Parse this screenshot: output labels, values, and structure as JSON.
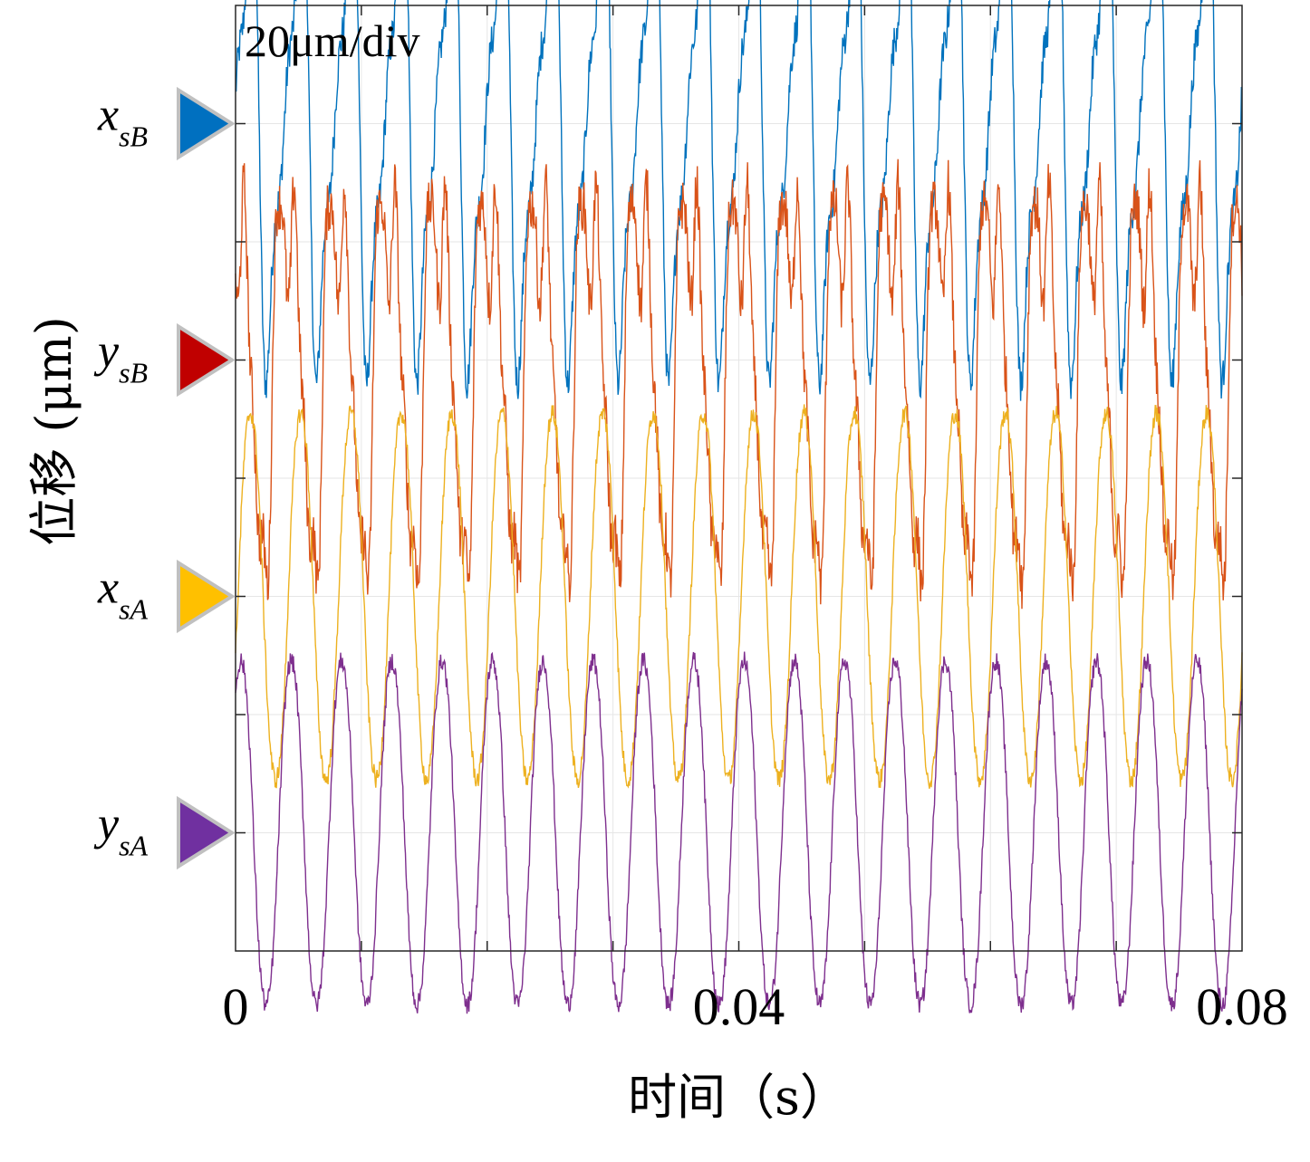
{
  "chart_data": {
    "type": "line",
    "scale_annotation": "20μm/div",
    "xlabel": "时间（s）",
    "ylabel": "位移 (μm)",
    "x_range": [
      0,
      0.08
    ],
    "x_ticks": [
      0,
      0.04,
      0.08
    ],
    "x_tick_labels": [
      "0",
      "0.04",
      "0.08"
    ],
    "y_units_per_div": 20,
    "grid": true,
    "series": [
      {
        "name": "x",
        "sub": "sB",
        "color": "#0072BD",
        "marker_color": "#0070C0",
        "frequency_hz": 250,
        "amplitude_um": 20,
        "shape": "sawtooth"
      },
      {
        "name": "y",
        "sub": "sB",
        "color": "#D95319",
        "marker_color": "#C00000",
        "frequency_hz": 250,
        "amplitude_um": 20,
        "shape": "distorted"
      },
      {
        "name": "x",
        "sub": "sA",
        "color": "#EDB120",
        "marker_color": "#FFC000",
        "frequency_hz": 250,
        "amplitude_um": 16,
        "shape": "sine"
      },
      {
        "name": "y",
        "sub": "sA",
        "color": "#7E2F8E",
        "marker_color": "#7030A0",
        "frequency_hz": 250,
        "amplitude_um": 15,
        "shape": "sine"
      }
    ]
  }
}
